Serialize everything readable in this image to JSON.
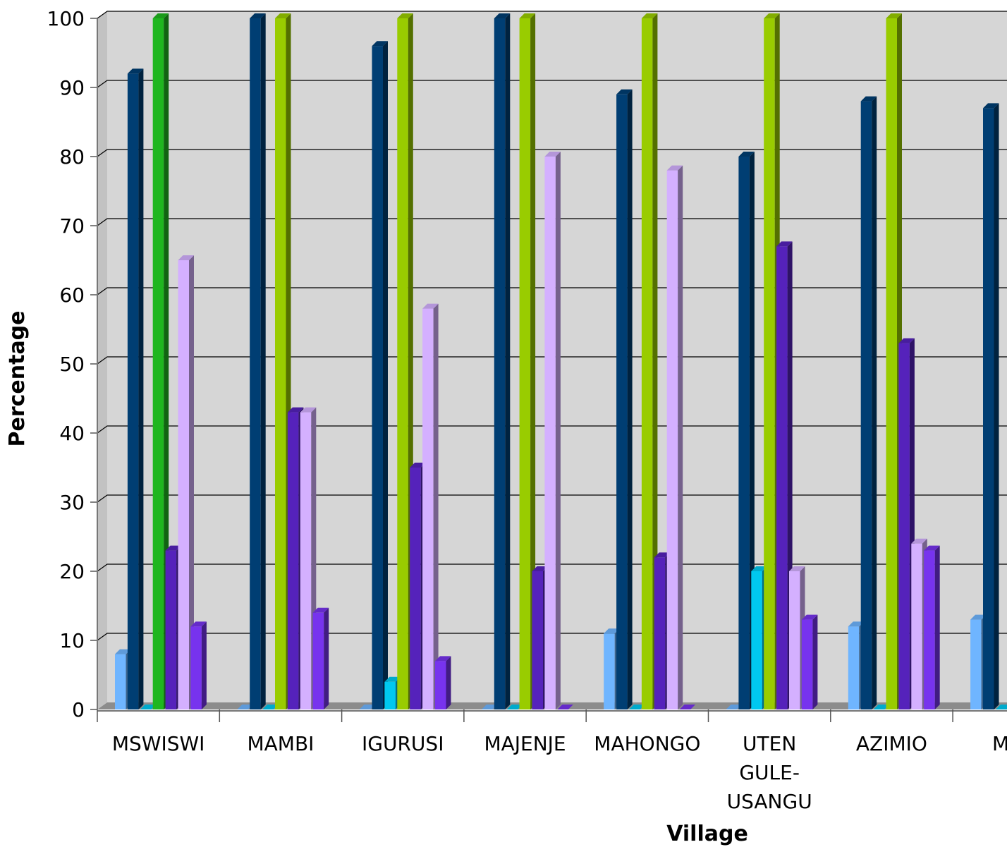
{
  "chart_data": {
    "type": "bar",
    "title": "",
    "xlabel": "Village",
    "ylabel": "Percentage",
    "ylim": [
      0,
      100
    ],
    "yticks": [
      0,
      10,
      20,
      30,
      40,
      50,
      60,
      70,
      80,
      90,
      100
    ],
    "grid": true,
    "legend": "none visible",
    "categories": [
      "MSWISWI",
      "MAMBI",
      "IGURUSI",
      "MAJENJE",
      "MAHONGO",
      "UTEN GULE- USANGU",
      "AZIMIO",
      "MPU"
    ],
    "category_lines": [
      [
        "MSWISWI"
      ],
      [
        "MAMBI"
      ],
      [
        "IGURUSI"
      ],
      [
        "MAJENJE"
      ],
      [
        "MAHONGO"
      ],
      [
        "UTEN",
        "GULE-",
        "USANGU"
      ],
      [
        "AZIMIO"
      ],
      [
        "MPU"
      ]
    ],
    "series": [
      {
        "color": "#6FB5FF",
        "values": [
          8,
          0,
          0,
          0,
          11,
          0,
          12,
          13
        ]
      },
      {
        "color": "#003E73",
        "values": [
          92,
          100,
          96,
          100,
          89,
          80,
          88,
          87
        ]
      },
      {
        "color": "#00C8F0",
        "values": [
          0,
          0,
          4,
          0,
          0,
          20,
          0,
          0
        ]
      },
      {
        "color": "#99CC00",
        "values": [
          100,
          100,
          100,
          100,
          100,
          100,
          100,
          null
        ]
      },
      {
        "color": "#5522BB",
        "values": [
          23,
          43,
          35,
          20,
          22,
          67,
          53,
          null
        ]
      },
      {
        "color": "#D4B0FF",
        "values": [
          65,
          43,
          58,
          80,
          78,
          20,
          24,
          null
        ]
      },
      {
        "color": "#7733EE",
        "values": [
          12,
          14,
          7,
          0,
          0,
          13,
          23,
          null
        ]
      }
    ],
    "series_color_overrides": [
      {
        "series": 3,
        "category": 0,
        "color": "#1FB61F"
      }
    ],
    "colors": {
      "plot_background": "#D6D6D6",
      "floor": "#8C8C8C",
      "grid": "#000000"
    }
  }
}
